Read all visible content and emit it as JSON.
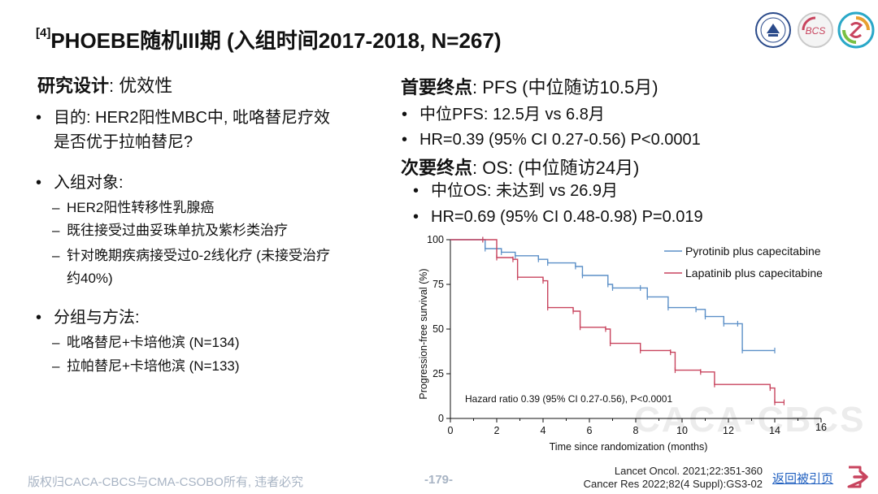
{
  "title": {
    "ref": "[4]",
    "text": "PHOEBE随机III期 (入组时间2017-2018, N=267)"
  },
  "left": {
    "design_label": "研究设计",
    "design_value": ": 优效性",
    "purpose_line1": "目的: HER2阳性MBC中, 吡咯替尼疗效",
    "purpose_line2": "是否优于拉帕替尼?",
    "population_label": "入组对象:",
    "population_items": [
      "HER2阳性转移性乳腺癌",
      "既往接受过曲妥珠单抗及紫杉类治疗",
      "针对晚期疾病接受过0-2线化疗 (未接受治疗",
      "约40%)"
    ],
    "arms_label": "分组与方法:",
    "arms_items": [
      "吡咯替尼+卡培他滨 (N=134)",
      "拉帕替尼+卡培他滨 (N=133)"
    ]
  },
  "right": {
    "primary_label": "首要终点",
    "primary_value": ": PFS (中位随访10.5月)",
    "primary_items": [
      "中位PFS: 12.5月 vs 6.8月",
      "HR=0.39 (95% CI 0.27-0.56) P<0.0001"
    ],
    "secondary_label": "次要终点",
    "secondary_value": ": OS:  (中位随访24月)",
    "secondary_items": [
      "中位OS: 未达到 vs 26.9月",
      "HR=0.69 (95% CI 0.48-0.98) P=0.019"
    ]
  },
  "chart_data": {
    "type": "line",
    "xlabel": "Time since randomization (months)",
    "ylabel": "Progression-free survival (%)",
    "xlim": [
      0,
      16
    ],
    "ylim": [
      0,
      100
    ],
    "x_ticks": [
      0,
      2,
      4,
      6,
      8,
      10,
      12,
      14,
      16
    ],
    "y_ticks": [
      0,
      25,
      50,
      75,
      100
    ],
    "annotation": "Hazard ratio 0.39 (95% CI 0.27-0.56), P<0.0001",
    "legend_position": "top-right",
    "series": [
      {
        "name": "Pyrotinib plus capecitabine",
        "color": "#5b8fc7",
        "x": [
          0,
          1.4,
          1.5,
          2.2,
          2.8,
          3.8,
          4.2,
          5.4,
          5.7,
          6.8,
          7.0,
          8.2,
          8.5,
          9.4,
          10.6,
          11.0,
          11.8,
          12.4,
          12.6,
          14.0
        ],
        "y": [
          100,
          100,
          95,
          93,
          91,
          89,
          87,
          85,
          80,
          75,
          73,
          73,
          68,
          62,
          61,
          57,
          53,
          53,
          38,
          38
        ]
      },
      {
        "name": "Lapatinib plus capecitabine",
        "color": "#c8445e",
        "x": [
          0,
          1.4,
          2.0,
          2.7,
          2.9,
          4.0,
          4.2,
          5.3,
          5.6,
          6.7,
          6.9,
          8.2,
          9.5,
          9.7,
          10.8,
          11.4,
          13.8,
          14.0,
          14.4
        ],
        "y": [
          100,
          100,
          90,
          89,
          79,
          77,
          62,
          60,
          51,
          50,
          42,
          38,
          37,
          27,
          26,
          19,
          17,
          9,
          9
        ]
      }
    ]
  },
  "watermark": "CACA-CBCS",
  "footer": {
    "copyright": "版权归CACA-CBCS与CMA-CSOBO所有, 违者必究",
    "page": "-179-",
    "ref1": "Lancet Oncol. 2021;22:351-360",
    "ref2": "Cancer Res 2022;82(4 Suppl):GS3-02",
    "back_link": "返回被引页"
  },
  "logos": {
    "logo2_text": "BCS"
  },
  "colors": {
    "accent": "#2060c0",
    "back_icon": "#c8445e"
  },
  "icons": [
    "university-seal-icon",
    "bcs-logo-icon",
    "caca-logo-icon",
    "exit-arrow-icon"
  ]
}
